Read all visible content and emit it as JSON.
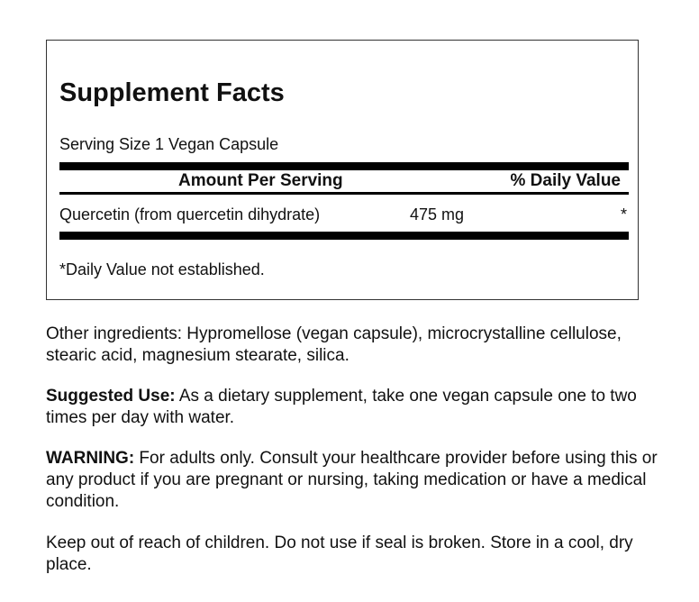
{
  "facts": {
    "title": "Supplement Facts",
    "serving_size": "Serving Size 1 Vegan Capsule",
    "header_amount": "Amount Per Serving",
    "header_dv": "% Daily Value",
    "rows": [
      {
        "name": "Quercetin (from quercetin dihydrate)",
        "amount": "475 mg",
        "dv": "*"
      }
    ],
    "footnote": "*Daily Value not established."
  },
  "other_ingredients": "Other ingredients: Hypromellose (vegan capsule), microcrystalline cellulose, stearic acid, magnesium stearate, silica.",
  "suggested_use": {
    "label": "Suggested Use:",
    "text": " As a dietary supplement, take one vegan capsule one to two times per day with water."
  },
  "warning": {
    "label": "WARNING:",
    "text": " For adults only. Consult your healthcare provider before using this or any product if you are pregnant or nursing, taking medication or have a medical condition."
  },
  "storage": "Keep out of reach of children. Do not use if seal is broken. Store in a cool, dry place."
}
